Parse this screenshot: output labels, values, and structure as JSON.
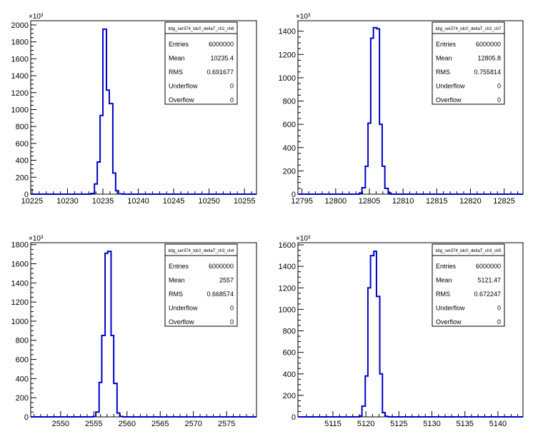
{
  "chart_data": [
    {
      "type": "histogram",
      "stats_title": "tdig_ser374_tdc0_deltaT_ch2_ch6",
      "stats": [
        {
          "label": "Entries",
          "value": "6000000"
        },
        {
          "label": "Mean",
          "value": "10235.4"
        },
        {
          "label": "RMS",
          "value": "0.691677"
        },
        {
          "label": "Underflow",
          "value": "0"
        },
        {
          "label": "Overflow",
          "value": "0"
        }
      ],
      "y_exponent": "×10³",
      "xlim": [
        10224.8,
        10256.7
      ],
      "ylim": [
        0,
        2050
      ],
      "x_ticks": [
        10225,
        10230,
        10235,
        10240,
        10245,
        10250,
        10255
      ],
      "y_ticks": [
        0,
        200,
        400,
        600,
        800,
        1000,
        1200,
        1400,
        1600,
        1800,
        2000
      ],
      "bins": [
        [
          10233.3,
          10233.8,
          8
        ],
        [
          10233.8,
          10234.2,
          120
        ],
        [
          10234.2,
          10234.6,
          380
        ],
        [
          10234.6,
          10235.0,
          930
        ],
        [
          10235.0,
          10235.5,
          1950
        ],
        [
          10235.5,
          10235.9,
          1230
        ],
        [
          10235.9,
          10236.4,
          1070
        ],
        [
          10236.4,
          10236.8,
          250
        ],
        [
          10236.8,
          10237.2,
          40
        ],
        [
          10237.2,
          10237.7,
          4
        ]
      ],
      "line_color": "#0000cc"
    },
    {
      "type": "histogram",
      "stats_title": "tdig_ser374_tdc0_deltaT_ch2_ch7",
      "stats": [
        {
          "label": "Entries",
          "value": "6000000"
        },
        {
          "label": "Mean",
          "value": "12805.8"
        },
        {
          "label": "RMS",
          "value": "0.755814"
        },
        {
          "label": "Underflow",
          "value": "0"
        },
        {
          "label": "Overflow",
          "value": "0"
        }
      ],
      "y_exponent": "×10³",
      "xlim": [
        12794.4,
        12827.8
      ],
      "ylim": [
        0,
        1490
      ],
      "x_ticks": [
        12795,
        12800,
        12805,
        12810,
        12815,
        12820,
        12825
      ],
      "y_ticks": [
        0,
        200,
        400,
        600,
        800,
        1000,
        1200,
        1400
      ],
      "bins": [
        [
          12803.5,
          12803.9,
          10
        ],
        [
          12803.9,
          12804.4,
          55
        ],
        [
          12804.4,
          12804.8,
          240
        ],
        [
          12804.8,
          12805.2,
          610
        ],
        [
          12805.2,
          12805.6,
          1340
        ],
        [
          12805.6,
          12806.1,
          1430
        ],
        [
          12806.1,
          12806.5,
          1420
        ],
        [
          12806.5,
          12806.9,
          600
        ],
        [
          12806.9,
          12807.3,
          240
        ],
        [
          12807.3,
          12807.8,
          50
        ],
        [
          12807.8,
          12808.2,
          10
        ]
      ],
      "line_color": "#0000cc"
    },
    {
      "type": "histogram",
      "stats_title": "tdig_ser374_tdc0_deltaT_ch3_ch4",
      "stats": [
        {
          "label": "Entries",
          "value": "6000000"
        },
        {
          "label": "Mean",
          "value": "2557"
        },
        {
          "label": "RMS",
          "value": "0.668574"
        },
        {
          "label": "Underflow",
          "value": "0"
        },
        {
          "label": "Overflow",
          "value": "0"
        }
      ],
      "y_exponent": "×10³",
      "xlim": [
        2545.5,
        2579.5
      ],
      "ylim": [
        0,
        1820
      ],
      "x_ticks": [
        2550,
        2555,
        2560,
        2565,
        2570,
        2575
      ],
      "y_ticks": [
        0,
        200,
        400,
        600,
        800,
        1000,
        1200,
        1400,
        1600,
        1800
      ],
      "bins": [
        [
          2554.9,
          2555.3,
          4
        ],
        [
          2555.3,
          2555.8,
          50
        ],
        [
          2555.8,
          2556.2,
          360
        ],
        [
          2556.2,
          2556.7,
          850
        ],
        [
          2556.7,
          2557.1,
          1710
        ],
        [
          2557.1,
          2557.6,
          1730
        ],
        [
          2557.6,
          2558.0,
          850
        ],
        [
          2558.0,
          2558.5,
          350
        ],
        [
          2558.5,
          2558.9,
          40
        ],
        [
          2558.9,
          2559.4,
          4
        ]
      ],
      "line_color": "#0000cc"
    },
    {
      "type": "histogram",
      "stats_title": "tdig_ser374_tdc0_deltaT_ch3_ch5",
      "stats": [
        {
          "label": "Entries",
          "value": "6000000"
        },
        {
          "label": "Mean",
          "value": "5121.47"
        },
        {
          "label": "RMS",
          "value": "0.672247"
        },
        {
          "label": "Underflow",
          "value": "0"
        },
        {
          "label": "Overflow",
          "value": "0"
        }
      ],
      "y_exponent": "×10³",
      "xlim": [
        5109.7,
        5143.8
      ],
      "ylim": [
        0,
        1620
      ],
      "x_ticks": [
        5115,
        5120,
        5125,
        5130,
        5135,
        5140
      ],
      "y_ticks": [
        0,
        200,
        400,
        600,
        800,
        1000,
        1200,
        1400,
        1600
      ],
      "bins": [
        [
          5119.0,
          5119.4,
          8
        ],
        [
          5119.4,
          5119.9,
          100
        ],
        [
          5119.9,
          5120.3,
          380
        ],
        [
          5120.3,
          5120.7,
          1200
        ],
        [
          5120.7,
          5121.2,
          1500
        ],
        [
          5121.2,
          5121.6,
          1540
        ],
        [
          5121.6,
          5122.1,
          1120
        ],
        [
          5122.1,
          5122.5,
          400
        ],
        [
          5122.5,
          5122.9,
          40
        ],
        [
          5122.9,
          5123.4,
          4
        ]
      ],
      "line_color": "#0000cc"
    }
  ]
}
